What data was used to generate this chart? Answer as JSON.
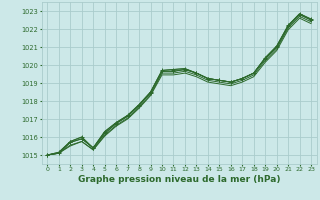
{
  "bg_color": "#cce8e8",
  "grid_color": "#aacccc",
  "line_color": "#2d6a2d",
  "marker_color": "#2d6a2d",
  "xlabel": "Graphe pression niveau de la mer (hPa)",
  "xlabel_fontsize": 6.5,
  "ylim": [
    1014.5,
    1023.5
  ],
  "xlim": [
    -0.5,
    23.5
  ],
  "yticks": [
    1015,
    1016,
    1017,
    1018,
    1019,
    1020,
    1021,
    1022,
    1023
  ],
  "xticks": [
    0,
    1,
    2,
    3,
    4,
    5,
    6,
    7,
    8,
    9,
    10,
    11,
    12,
    13,
    14,
    15,
    16,
    17,
    18,
    19,
    20,
    21,
    22,
    23
  ],
  "series": [
    [
      1015.0,
      1015.1,
      1015.7,
      1015.9,
      1015.4,
      1016.3,
      1016.8,
      1017.2,
      1017.8,
      1018.5,
      1019.7,
      1019.75,
      1019.8,
      1019.55,
      1019.25,
      1019.15,
      1019.05,
      1019.25,
      1019.55,
      1020.4,
      1021.05,
      1022.2,
      1022.85,
      1022.55
    ],
    [
      1015.0,
      1015.1,
      1015.55,
      1015.75,
      1015.3,
      1016.1,
      1016.65,
      1017.05,
      1017.65,
      1018.35,
      1019.55,
      1019.55,
      1019.65,
      1019.45,
      1019.15,
      1019.05,
      1018.95,
      1019.15,
      1019.45,
      1020.25,
      1020.9,
      1022.05,
      1022.7,
      1022.4
    ],
    [
      1015.0,
      1015.1,
      1015.5,
      1015.75,
      1015.28,
      1016.05,
      1016.6,
      1017.0,
      1017.6,
      1018.3,
      1019.45,
      1019.45,
      1019.55,
      1019.35,
      1019.05,
      1018.95,
      1018.85,
      1019.05,
      1019.35,
      1020.15,
      1020.8,
      1021.95,
      1022.6,
      1022.3
    ],
    [
      1015.0,
      1015.15,
      1015.75,
      1016.0,
      1015.38,
      1016.2,
      1016.75,
      1017.15,
      1017.75,
      1018.45,
      1019.65,
      1019.65,
      1019.75,
      1019.55,
      1019.25,
      1019.15,
      1019.05,
      1019.25,
      1019.55,
      1020.35,
      1021.0,
      1022.15,
      1022.8,
      1022.5
    ]
  ],
  "marked_series": [
    0,
    3
  ]
}
